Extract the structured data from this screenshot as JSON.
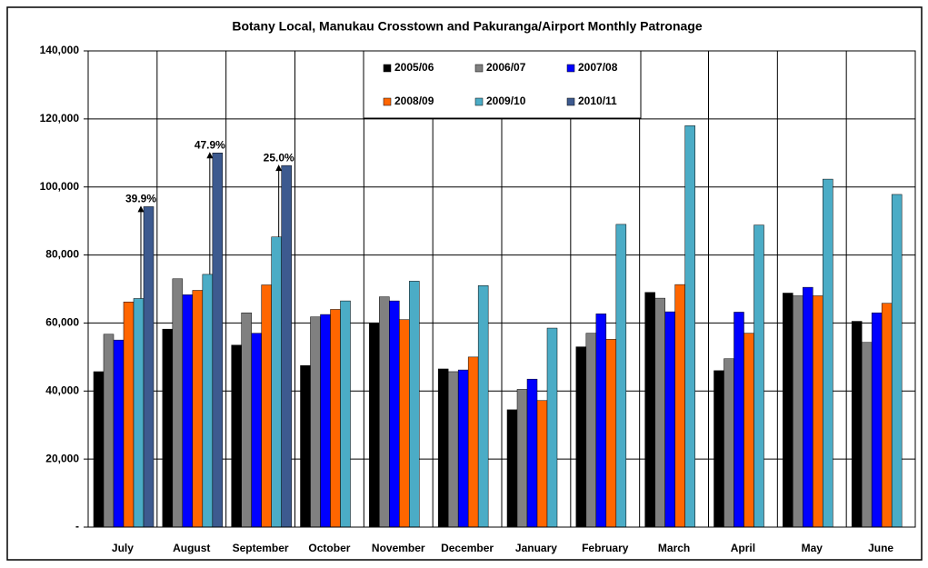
{
  "chart_data": {
    "type": "bar",
    "title": "Botany Local, Manukau Crosstown and Pakuranga/Airport Monthly Patronage",
    "categories": [
      "July",
      "August",
      "September",
      "October",
      "November",
      "December",
      "January",
      "February",
      "March",
      "April",
      "May",
      "June"
    ],
    "series": [
      {
        "name": "2005/06",
        "color": "#000000",
        "values": [
          45700,
          58200,
          53500,
          47500,
          60000,
          46500,
          34500,
          53000,
          69000,
          46000,
          68800,
          60500
        ]
      },
      {
        "name": "2006/07",
        "color": "#808080",
        "values": [
          56700,
          73000,
          63000,
          61800,
          67700,
          45700,
          40500,
          57000,
          67300,
          49500,
          68000,
          54300
        ]
      },
      {
        "name": "2007/08",
        "color": "#0000ff",
        "values": [
          55000,
          68300,
          57000,
          62500,
          66500,
          46200,
          43500,
          62700,
          63300,
          63200,
          70500,
          63000
        ]
      },
      {
        "name": "2008/09",
        "color": "#ff6600",
        "values": [
          66200,
          69600,
          71200,
          64000,
          61000,
          50000,
          37200,
          55200,
          71300,
          57000,
          68000,
          65800
        ]
      },
      {
        "name": "2009/10",
        "color": "#4bacc6",
        "values": [
          67200,
          74300,
          85300,
          66500,
          72300,
          71000,
          58500,
          89000,
          118000,
          88800,
          102300,
          97800
        ]
      },
      {
        "name": "2010/11",
        "color": "#3d5a8f",
        "values": [
          94200,
          110000,
          106300,
          null,
          null,
          null,
          null,
          null,
          null,
          null,
          null,
          null
        ]
      }
    ],
    "annotations": [
      {
        "text": "39.9%",
        "x": "July"
      },
      {
        "text": "47.9%",
        "x": "August"
      },
      {
        "text": "25.0%",
        "x": "September"
      }
    ],
    "ylim": [
      0,
      140000
    ],
    "yticks": [
      {
        "value": 0,
        "label": "-"
      },
      {
        "value": 20000,
        "label": "20,000"
      },
      {
        "value": 40000,
        "label": "40,000"
      },
      {
        "value": 60000,
        "label": "60,000"
      },
      {
        "value": 80000,
        "label": "80,000"
      },
      {
        "value": 100000,
        "label": "100,000"
      },
      {
        "value": 120000,
        "label": "120,000"
      },
      {
        "value": 140000,
        "label": "140,000"
      }
    ],
    "grid": true
  }
}
